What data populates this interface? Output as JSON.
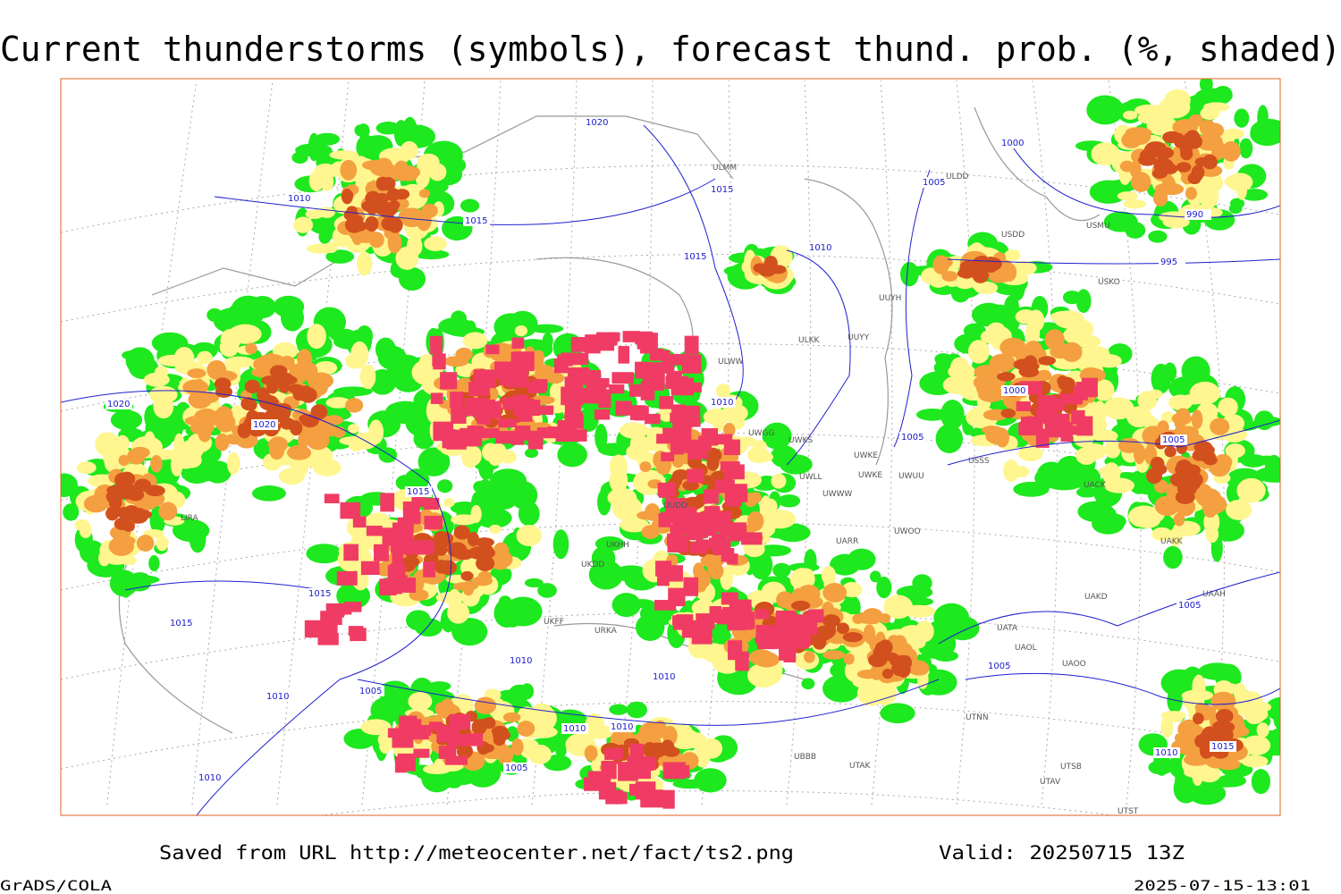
{
  "title": "Current thunderstorms (symbols), forecast thund. prob. (%, shaded)",
  "footer": {
    "source": "Saved from URL http://meteocenter.net/fact/ts2.png",
    "valid": "Valid: 20250715 13Z",
    "software": "GrADS/COLA",
    "timestamp": "2025-07-15-13:01"
  },
  "isobar_labels": [
    "1020",
    "1010",
    "1015",
    "1015",
    "1015",
    "1010",
    "1005",
    "1000",
    "990",
    "995",
    "1020",
    "1020",
    "1010",
    "1015",
    "1015",
    "1015",
    "1010",
    "1005",
    "1000",
    "1005",
    "1005",
    "1010",
    "1005",
    "1010",
    "1010",
    "1005",
    "1010",
    "1010",
    "1015",
    "1010",
    "1005"
  ],
  "station_labels": [
    "ULMM",
    "ULDD",
    "USDD",
    "USMU",
    "USKO",
    "ULKK",
    "UUYY",
    "ULWW",
    "UUYH",
    "UWGG",
    "UWKS",
    "UWKE",
    "UWKE",
    "UWUU",
    "UWLL",
    "UWWW",
    "UUDD",
    "UKHH",
    "UKDD",
    "UARR",
    "UWOO",
    "USSS",
    "UACK",
    "UAKK",
    "UAKD",
    "UAAH",
    "UATA",
    "UAOL",
    "UAOO",
    "UTNN",
    "UBBB",
    "UTAK",
    "UTSB",
    "UTAV",
    "LIRA",
    "URKA",
    "UKFF",
    "UTST"
  ]
}
